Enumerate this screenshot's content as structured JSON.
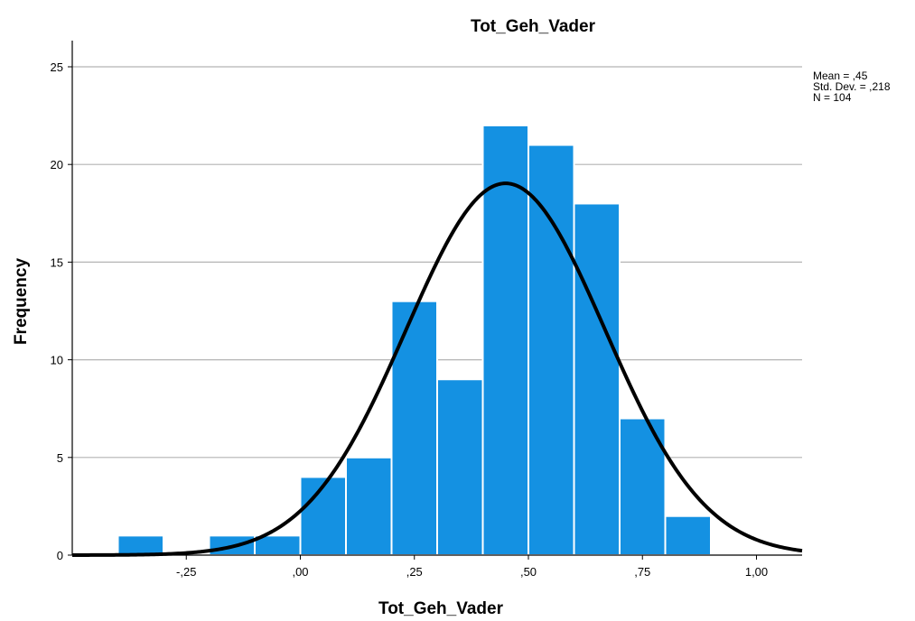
{
  "chart_data": {
    "type": "bar",
    "title": "Tot_Geh_Vader",
    "xlabel": "Tot_Geh_Vader",
    "ylabel": "Frequency",
    "xlim": [
      -0.5,
      1.1
    ],
    "ylim": [
      0,
      25
    ],
    "bin_width": 0.1,
    "bins": [
      {
        "start": -0.4,
        "end": -0.3,
        "count": 1
      },
      {
        "start": -0.2,
        "end": -0.1,
        "count": 1
      },
      {
        "start": -0.1,
        "end": 0.0,
        "count": 1
      },
      {
        "start": 0.0,
        "end": 0.1,
        "count": 4
      },
      {
        "start": 0.1,
        "end": 0.2,
        "count": 5
      },
      {
        "start": 0.2,
        "end": 0.3,
        "count": 13
      },
      {
        "start": 0.3,
        "end": 0.4,
        "count": 9
      },
      {
        "start": 0.4,
        "end": 0.5,
        "count": 22
      },
      {
        "start": 0.5,
        "end": 0.6,
        "count": 21
      },
      {
        "start": 0.6,
        "end": 0.7,
        "count": 18
      },
      {
        "start": 0.7,
        "end": 0.8,
        "count": 7
      },
      {
        "start": 0.8,
        "end": 0.9,
        "count": 2
      }
    ],
    "x_ticks": [
      {
        "value": -0.25,
        "label": "-,25"
      },
      {
        "value": 0.0,
        "label": ",00"
      },
      {
        "value": 0.25,
        "label": ",25"
      },
      {
        "value": 0.5,
        "label": ",50"
      },
      {
        "value": 0.75,
        "label": ",75"
      },
      {
        "value": 1.0,
        "label": "1,00"
      }
    ],
    "y_ticks": [
      {
        "value": 0,
        "label": "0"
      },
      {
        "value": 5,
        "label": "5"
      },
      {
        "value": 10,
        "label": "10"
      },
      {
        "value": 15,
        "label": "15"
      },
      {
        "value": 20,
        "label": "20"
      },
      {
        "value": 25,
        "label": "25"
      }
    ],
    "normal_curve": {
      "mean": 0.45,
      "std_dev": 0.218,
      "n": 104
    },
    "stats": [
      "Mean = ,45",
      "Std. Dev. = ,218",
      "N = 104"
    ],
    "grid": "horizontal",
    "legend": "none",
    "colors": {
      "bar": "#1491E2",
      "bar_edge": "#ffffff",
      "curve": "#000000",
      "grid": "#b4b4b4",
      "axis": "#000000"
    }
  }
}
